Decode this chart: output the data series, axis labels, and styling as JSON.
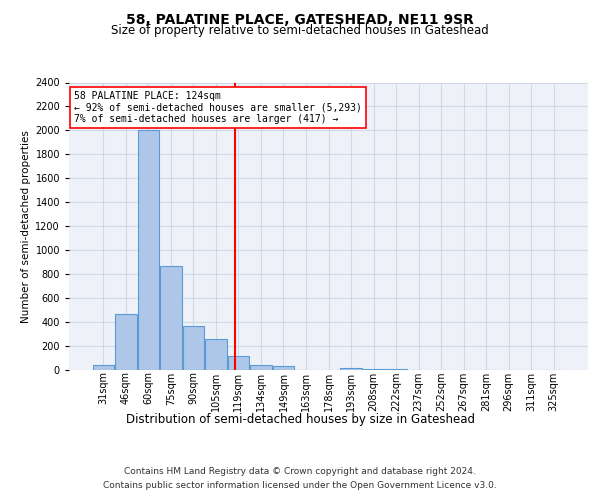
{
  "title1": "58, PALATINE PLACE, GATESHEAD, NE11 9SR",
  "title2": "Size of property relative to semi-detached houses in Gateshead",
  "xlabel": "Distribution of semi-detached houses by size in Gateshead",
  "ylabel": "Number of semi-detached properties",
  "footer1": "Contains HM Land Registry data © Crown copyright and database right 2024.",
  "footer2": "Contains public sector information licensed under the Open Government Licence v3.0.",
  "bar_labels": [
    "31sqm",
    "46sqm",
    "60sqm",
    "75sqm",
    "90sqm",
    "105sqm",
    "119sqm",
    "134sqm",
    "149sqm",
    "163sqm",
    "178sqm",
    "193sqm",
    "208sqm",
    "222sqm",
    "237sqm",
    "252sqm",
    "267sqm",
    "281sqm",
    "296sqm",
    "311sqm",
    "325sqm"
  ],
  "bar_values": [
    45,
    470,
    2000,
    870,
    370,
    255,
    120,
    40,
    35,
    0,
    0,
    20,
    10,
    10,
    0,
    0,
    0,
    0,
    0,
    0,
    0
  ],
  "bar_color": "#aec6e8",
  "bar_edge_color": "#5b9bd5",
  "vline_x_index": 5.87,
  "vline_color": "red",
  "annotation_line1": "58 PALATINE PLACE: 124sqm",
  "annotation_line2": "← 92% of semi-detached houses are smaller (5,293)",
  "annotation_line3": "7% of semi-detached houses are larger (417) →",
  "annotation_box_color": "white",
  "annotation_box_edge": "red",
  "ylim": [
    0,
    2400
  ],
  "yticks": [
    0,
    200,
    400,
    600,
    800,
    1000,
    1200,
    1400,
    1600,
    1800,
    2000,
    2200,
    2400
  ],
  "grid_color": "#d0d8e8",
  "background_color": "#eef2f8",
  "title1_fontsize": 10,
  "title2_fontsize": 8.5,
  "footer_fontsize": 6.5,
  "ylabel_fontsize": 7.5,
  "xlabel_fontsize": 8.5,
  "tick_fontsize": 7,
  "annot_fontsize": 7
}
